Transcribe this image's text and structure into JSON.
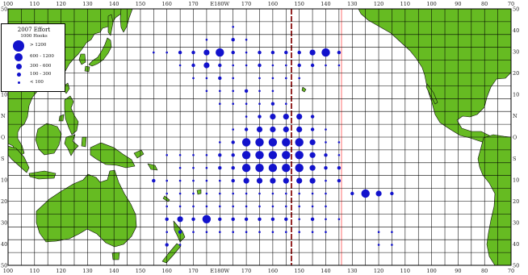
{
  "map": {
    "colors": {
      "land": "#66bb22",
      "coast": "#0a0a0a",
      "grid": "#000000",
      "bubble": "#1212cc",
      "eez_line_dark": "#8b1010",
      "eez_line_light": "#ff7f7f"
    },
    "top_ticks": [
      "100",
      "110",
      "120",
      "130",
      "140",
      "150",
      "160",
      "170",
      "E180W",
      "170",
      "160",
      "150",
      "140",
      "130",
      "120",
      "110",
      "100",
      "90",
      "80",
      "70"
    ],
    "bottom_ticks": [
      "100",
      "110",
      "120",
      "130",
      "140",
      "150",
      "160",
      "170",
      "E180W",
      "170",
      "160",
      "150",
      "140",
      "130",
      "120",
      "110",
      "100",
      "90",
      "80",
      "70"
    ],
    "left_ticks": [
      "50",
      "40",
      "30",
      "20",
      "10",
      "N",
      "O",
      "S",
      "10",
      "20",
      "30",
      "40",
      "50"
    ],
    "right_ticks": [
      "50",
      "40",
      "30",
      "20",
      "10",
      "N",
      "O",
      "S",
      "10",
      "20",
      "30",
      "40",
      "50"
    ]
  },
  "legend": {
    "title": "2007 Effort",
    "subtitle": "1000 Hooks",
    "classes": [
      {
        "label": "> 1200",
        "size": 5
      },
      {
        "label": "600 - 1200",
        "size": 4
      },
      {
        "label": "300 - 600",
        "size": 3
      },
      {
        "label": "100 - 300",
        "size": 2
      },
      {
        "label": "< 100",
        "size": 1
      }
    ]
  },
  "effort_cells": [
    {
      "lon": -175,
      "lat": 43,
      "c": 1
    },
    {
      "lon": 175,
      "lat": 38,
      "c": 1
    },
    {
      "lon": -170,
      "lat": 38,
      "c": 1
    },
    {
      "lon": -175,
      "lat": 38,
      "c": 2
    },
    {
      "lon": 155,
      "lat": 33,
      "c": 1
    },
    {
      "lon": 160,
      "lat": 33,
      "c": 1
    },
    {
      "lon": 165,
      "lat": 33,
      "c": 2
    },
    {
      "lon": 170,
      "lat": 33,
      "c": 2
    },
    {
      "lon": 175,
      "lat": 33,
      "c": 3
    },
    {
      "lon": 180,
      "lat": 33,
      "c": 4
    },
    {
      "lon": -175,
      "lat": 33,
      "c": 2
    },
    {
      "lon": -170,
      "lat": 33,
      "c": 1
    },
    {
      "lon": -165,
      "lat": 33,
      "c": 2
    },
    {
      "lon": -160,
      "lat": 33,
      "c": 2
    },
    {
      "lon": -155,
      "lat": 33,
      "c": 2
    },
    {
      "lon": -150,
      "lat": 33,
      "c": 2
    },
    {
      "lon": -145,
      "lat": 33,
      "c": 3
    },
    {
      "lon": -140,
      "lat": 33,
      "c": 4
    },
    {
      "lon": -135,
      "lat": 33,
      "c": 2
    },
    {
      "lon": 165,
      "lat": 28,
      "c": 1
    },
    {
      "lon": 170,
      "lat": 28,
      "c": 2
    },
    {
      "lon": 175,
      "lat": 28,
      "c": 3
    },
    {
      "lon": 180,
      "lat": 28,
      "c": 2
    },
    {
      "lon": -175,
      "lat": 28,
      "c": 1
    },
    {
      "lon": -170,
      "lat": 28,
      "c": 1
    },
    {
      "lon": -165,
      "lat": 28,
      "c": 2
    },
    {
      "lon": -160,
      "lat": 28,
      "c": 1
    },
    {
      "lon": -155,
      "lat": 28,
      "c": 1
    },
    {
      "lon": -150,
      "lat": 28,
      "c": 2
    },
    {
      "lon": -145,
      "lat": 28,
      "c": 2
    },
    {
      "lon": -140,
      "lat": 28,
      "c": 1
    },
    {
      "lon": -135,
      "lat": 28,
      "c": 1
    },
    {
      "lon": 170,
      "lat": 23,
      "c": 1
    },
    {
      "lon": 175,
      "lat": 23,
      "c": 1
    },
    {
      "lon": 180,
      "lat": 23,
      "c": 2
    },
    {
      "lon": -175,
      "lat": 23,
      "c": 1
    },
    {
      "lon": -165,
      "lat": 23,
      "c": 1
    },
    {
      "lon": -160,
      "lat": 23,
      "c": 1
    },
    {
      "lon": -155,
      "lat": 23,
      "c": 1
    },
    {
      "lon": -150,
      "lat": 23,
      "c": 1
    },
    {
      "lon": 175,
      "lat": 18,
      "c": 1
    },
    {
      "lon": 180,
      "lat": 18,
      "c": 1
    },
    {
      "lon": -175,
      "lat": 18,
      "c": 1
    },
    {
      "lon": -170,
      "lat": 18,
      "c": 2
    },
    {
      "lon": -165,
      "lat": 18,
      "c": 1
    },
    {
      "lon": -160,
      "lat": 18,
      "c": 1
    },
    {
      "lon": 180,
      "lat": 13,
      "c": 1
    },
    {
      "lon": -175,
      "lat": 13,
      "c": 1
    },
    {
      "lon": -170,
      "lat": 13,
      "c": 1
    },
    {
      "lon": -165,
      "lat": 13,
      "c": 1
    },
    {
      "lon": -160,
      "lat": 13,
      "c": 2
    },
    {
      "lon": -155,
      "lat": 13,
      "c": 1
    },
    {
      "lon": -170,
      "lat": 8,
      "c": 1
    },
    {
      "lon": -165,
      "lat": 8,
      "c": 2
    },
    {
      "lon": -160,
      "lat": 8,
      "c": 3
    },
    {
      "lon": -155,
      "lat": 8,
      "c": 3
    },
    {
      "lon": -150,
      "lat": 8,
      "c": 3
    },
    {
      "lon": -145,
      "lat": 8,
      "c": 2
    },
    {
      "lon": -175,
      "lat": 3,
      "c": 1
    },
    {
      "lon": -170,
      "lat": 3,
      "c": 2
    },
    {
      "lon": -165,
      "lat": 3,
      "c": 3
    },
    {
      "lon": -160,
      "lat": 3,
      "c": 3
    },
    {
      "lon": -155,
      "lat": 3,
      "c": 3
    },
    {
      "lon": -150,
      "lat": 3,
      "c": 3
    },
    {
      "lon": -145,
      "lat": 3,
      "c": 2
    },
    {
      "lon": -140,
      "lat": 3,
      "c": 1
    },
    {
      "lon": 180,
      "lat": -2,
      "c": 1
    },
    {
      "lon": -175,
      "lat": -2,
      "c": 2
    },
    {
      "lon": -170,
      "lat": -2,
      "c": 4
    },
    {
      "lon": -165,
      "lat": -2,
      "c": 4
    },
    {
      "lon": -160,
      "lat": -2,
      "c": 4
    },
    {
      "lon": -155,
      "lat": -2,
      "c": 4
    },
    {
      "lon": -150,
      "lat": -2,
      "c": 4
    },
    {
      "lon": -145,
      "lat": -2,
      "c": 3
    },
    {
      "lon": -140,
      "lat": -2,
      "c": 1
    },
    {
      "lon": -135,
      "lat": -2,
      "c": 1
    },
    {
      "lon": 160,
      "lat": -7,
      "c": 1
    },
    {
      "lon": 165,
      "lat": -7,
      "c": 1
    },
    {
      "lon": 170,
      "lat": -7,
      "c": 1
    },
    {
      "lon": 175,
      "lat": -7,
      "c": 1
    },
    {
      "lon": 180,
      "lat": -7,
      "c": 2
    },
    {
      "lon": -175,
      "lat": -7,
      "c": 2
    },
    {
      "lon": -170,
      "lat": -7,
      "c": 4
    },
    {
      "lon": -165,
      "lat": -7,
      "c": 4
    },
    {
      "lon": -160,
      "lat": -7,
      "c": 4
    },
    {
      "lon": -155,
      "lat": -7,
      "c": 4
    },
    {
      "lon": -150,
      "lat": -7,
      "c": 4
    },
    {
      "lon": -145,
      "lat": -7,
      "c": 3
    },
    {
      "lon": -140,
      "lat": -7,
      "c": 2
    },
    {
      "lon": -135,
      "lat": -7,
      "c": 1
    },
    {
      "lon": 165,
      "lat": -12,
      "c": 1
    },
    {
      "lon": 170,
      "lat": -12,
      "c": 1
    },
    {
      "lon": 175,
      "lat": -12,
      "c": 1
    },
    {
      "lon": 180,
      "lat": -12,
      "c": 2
    },
    {
      "lon": -175,
      "lat": -12,
      "c": 2
    },
    {
      "lon": -170,
      "lat": -12,
      "c": 4
    },
    {
      "lon": -165,
      "lat": -12,
      "c": 4
    },
    {
      "lon": -160,
      "lat": -12,
      "c": 4
    },
    {
      "lon": -155,
      "lat": -12,
      "c": 4
    },
    {
      "lon": -150,
      "lat": -12,
      "c": 4
    },
    {
      "lon": -145,
      "lat": -12,
      "c": 3
    },
    {
      "lon": -140,
      "lat": -12,
      "c": 2
    },
    {
      "lon": -135,
      "lat": -12,
      "c": 2
    },
    {
      "lon": 155,
      "lat": -17,
      "c": 2
    },
    {
      "lon": 160,
      "lat": -17,
      "c": 1
    },
    {
      "lon": 165,
      "lat": -17,
      "c": 1
    },
    {
      "lon": 170,
      "lat": -17,
      "c": 1
    },
    {
      "lon": 175,
      "lat": -17,
      "c": 1
    },
    {
      "lon": 180,
      "lat": -17,
      "c": 1
    },
    {
      "lon": -175,
      "lat": -17,
      "c": 2
    },
    {
      "lon": -170,
      "lat": -17,
      "c": 3
    },
    {
      "lon": -165,
      "lat": -17,
      "c": 3
    },
    {
      "lon": -160,
      "lat": -17,
      "c": 3
    },
    {
      "lon": -155,
      "lat": -17,
      "c": 3
    },
    {
      "lon": -150,
      "lat": -17,
      "c": 3
    },
    {
      "lon": -145,
      "lat": -17,
      "c": 3
    },
    {
      "lon": -140,
      "lat": -17,
      "c": 1
    },
    {
      "lon": -135,
      "lat": -17,
      "c": 2
    },
    {
      "lon": 160,
      "lat": -22,
      "c": 1
    },
    {
      "lon": 165,
      "lat": -22,
      "c": 1
    },
    {
      "lon": 170,
      "lat": -22,
      "c": 1
    },
    {
      "lon": 175,
      "lat": -22,
      "c": 1
    },
    {
      "lon": 180,
      "lat": -22,
      "c": 1
    },
    {
      "lon": -175,
      "lat": -22,
      "c": 1
    },
    {
      "lon": -170,
      "lat": -22,
      "c": 1
    },
    {
      "lon": -165,
      "lat": -22,
      "c": 1
    },
    {
      "lon": -160,
      "lat": -22,
      "c": 1
    },
    {
      "lon": -155,
      "lat": -22,
      "c": 1
    },
    {
      "lon": -150,
      "lat": -22,
      "c": 1
    },
    {
      "lon": -145,
      "lat": -22,
      "c": 1
    },
    {
      "lon": -140,
      "lat": -22,
      "c": 1
    },
    {
      "lon": -130,
      "lat": -22,
      "c": 2
    },
    {
      "lon": -125,
      "lat": -22,
      "c": 4
    },
    {
      "lon": -120,
      "lat": -22,
      "c": 3
    },
    {
      "lon": -115,
      "lat": -22,
      "c": 2
    },
    {
      "lon": 160,
      "lat": -27,
      "c": 1
    },
    {
      "lon": 165,
      "lat": -27,
      "c": 1
    },
    {
      "lon": 170,
      "lat": -27,
      "c": 1
    },
    {
      "lon": 175,
      "lat": -27,
      "c": 1
    },
    {
      "lon": 180,
      "lat": -27,
      "c": 1
    },
    {
      "lon": -175,
      "lat": -27,
      "c": 1
    },
    {
      "lon": -170,
      "lat": -27,
      "c": 1
    },
    {
      "lon": -165,
      "lat": -27,
      "c": 1
    },
    {
      "lon": -160,
      "lat": -27,
      "c": 1
    },
    {
      "lon": -155,
      "lat": -27,
      "c": 1
    },
    {
      "lon": -150,
      "lat": -27,
      "c": 1
    },
    {
      "lon": -145,
      "lat": -27,
      "c": 1
    },
    {
      "lon": -140,
      "lat": -27,
      "c": 1
    },
    {
      "lon": 160,
      "lat": -32,
      "c": 2
    },
    {
      "lon": 165,
      "lat": -32,
      "c": 3
    },
    {
      "lon": 170,
      "lat": -32,
      "c": 2
    },
    {
      "lon": 175,
      "lat": -32,
      "c": 4
    },
    {
      "lon": 180,
      "lat": -32,
      "c": 2
    },
    {
      "lon": -175,
      "lat": -32,
      "c": 2
    },
    {
      "lon": -170,
      "lat": -32,
      "c": 2
    },
    {
      "lon": -165,
      "lat": -32,
      "c": 2
    },
    {
      "lon": -160,
      "lat": -32,
      "c": 2
    },
    {
      "lon": -155,
      "lat": -32,
      "c": 2
    },
    {
      "lon": -150,
      "lat": -32,
      "c": 1
    },
    {
      "lon": -145,
      "lat": -32,
      "c": 2
    },
    {
      "lon": -140,
      "lat": -32,
      "c": 1
    },
    {
      "lon": -135,
      "lat": -32,
      "c": 1
    },
    {
      "lon": 160,
      "lat": -37,
      "c": 1
    },
    {
      "lon": 165,
      "lat": -37,
      "c": 2
    },
    {
      "lon": 170,
      "lat": -37,
      "c": 1
    },
    {
      "lon": 175,
      "lat": -37,
      "c": 1
    },
    {
      "lon": 180,
      "lat": -37,
      "c": 1
    },
    {
      "lon": -175,
      "lat": -37,
      "c": 1
    },
    {
      "lon": -170,
      "lat": -37,
      "c": 1
    },
    {
      "lon": -165,
      "lat": -37,
      "c": 1
    },
    {
      "lon": -160,
      "lat": -37,
      "c": 1
    },
    {
      "lon": -155,
      "lat": -37,
      "c": 1
    },
    {
      "lon": -150,
      "lat": -37,
      "c": 1
    },
    {
      "lon": -145,
      "lat": -37,
      "c": 1
    },
    {
      "lon": -140,
      "lat": -37,
      "c": 1
    },
    {
      "lon": -120,
      "lat": -37,
      "c": 1
    },
    {
      "lon": -115,
      "lat": -37,
      "c": 1
    },
    {
      "lon": 160,
      "lat": -42,
      "c": 2
    },
    {
      "lon": 165,
      "lat": -42,
      "c": 1
    },
    {
      "lon": -120,
      "lat": -42,
      "c": 1
    },
    {
      "lon": -115,
      "lat": -42,
      "c": 1
    }
  ]
}
